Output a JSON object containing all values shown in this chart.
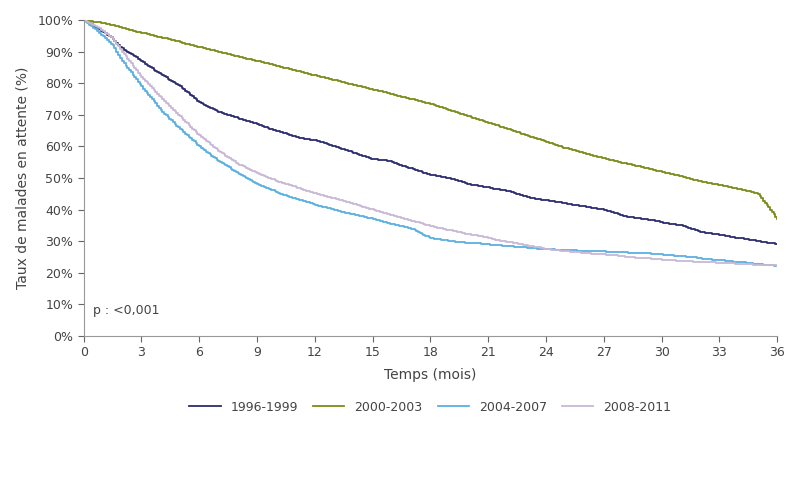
{
  "ylabel": "Taux de malades en attente (%)",
  "xlabel": "Temps (mois)",
  "pvalue_text": "p : <0,001",
  "xlim": [
    0,
    36
  ],
  "ylim": [
    0,
    1.0
  ],
  "xticks": [
    0,
    3,
    6,
    9,
    12,
    15,
    18,
    21,
    24,
    27,
    30,
    33,
    36
  ],
  "yticks": [
    0.0,
    0.1,
    0.2,
    0.3,
    0.4,
    0.5,
    0.6,
    0.7,
    0.8,
    0.9,
    1.0
  ],
  "series": [
    {
      "label": "1996-1999",
      "color": "#2b2d6e",
      "linewidth": 1.3,
      "keypoints": [
        [
          0,
          1.0
        ],
        [
          0.3,
          0.99
        ],
        [
          0.8,
          0.97
        ],
        [
          1.5,
          0.94
        ],
        [
          2,
          0.91
        ],
        [
          3,
          0.87
        ],
        [
          4,
          0.83
        ],
        [
          5,
          0.79
        ],
        [
          6,
          0.74
        ],
        [
          7,
          0.71
        ],
        [
          8,
          0.69
        ],
        [
          9,
          0.67
        ],
        [
          10,
          0.65
        ],
        [
          11,
          0.63
        ],
        [
          12,
          0.62
        ],
        [
          13,
          0.6
        ],
        [
          14,
          0.58
        ],
        [
          15,
          0.56
        ],
        [
          16,
          0.55
        ],
        [
          17,
          0.53
        ],
        [
          18,
          0.51
        ],
        [
          19,
          0.5
        ],
        [
          20,
          0.48
        ],
        [
          21,
          0.47
        ],
        [
          22,
          0.46
        ],
        [
          23,
          0.44
        ],
        [
          24,
          0.43
        ],
        [
          25,
          0.42
        ],
        [
          26,
          0.41
        ],
        [
          27,
          0.4
        ],
        [
          28,
          0.38
        ],
        [
          29,
          0.37
        ],
        [
          30,
          0.36
        ],
        [
          31,
          0.35
        ],
        [
          32,
          0.33
        ],
        [
          33,
          0.32
        ],
        [
          34,
          0.31
        ],
        [
          35,
          0.3
        ],
        [
          36,
          0.29
        ]
      ]
    },
    {
      "label": "2000-2003",
      "color": "#7b8c1a",
      "linewidth": 1.3,
      "keypoints": [
        [
          0,
          1.0
        ],
        [
          0.5,
          0.995
        ],
        [
          1,
          0.99
        ],
        [
          2,
          0.975
        ],
        [
          3,
          0.96
        ],
        [
          4,
          0.945
        ],
        [
          5,
          0.93
        ],
        [
          6,
          0.915
        ],
        [
          7,
          0.9
        ],
        [
          8,
          0.885
        ],
        [
          9,
          0.87
        ],
        [
          10,
          0.855
        ],
        [
          11,
          0.84
        ],
        [
          12,
          0.825
        ],
        [
          13,
          0.81
        ],
        [
          14,
          0.795
        ],
        [
          15,
          0.78
        ],
        [
          16,
          0.765
        ],
        [
          17,
          0.75
        ],
        [
          18,
          0.735
        ],
        [
          19,
          0.715
        ],
        [
          20,
          0.695
        ],
        [
          21,
          0.675
        ],
        [
          22,
          0.655
        ],
        [
          23,
          0.635
        ],
        [
          24,
          0.615
        ],
        [
          25,
          0.595
        ],
        [
          26,
          0.578
        ],
        [
          27,
          0.562
        ],
        [
          28,
          0.548
        ],
        [
          29,
          0.534
        ],
        [
          30,
          0.52
        ],
        [
          31,
          0.505
        ],
        [
          32,
          0.49
        ],
        [
          33,
          0.478
        ],
        [
          34,
          0.465
        ],
        [
          35,
          0.45
        ],
        [
          36,
          0.37
        ]
      ]
    },
    {
      "label": "2004-2007",
      "color": "#5ab0e0",
      "linewidth": 1.3,
      "keypoints": [
        [
          0,
          1.0
        ],
        [
          0.3,
          0.985
        ],
        [
          0.8,
          0.96
        ],
        [
          1.5,
          0.92
        ],
        [
          2,
          0.87
        ],
        [
          3,
          0.79
        ],
        [
          4,
          0.715
        ],
        [
          5,
          0.655
        ],
        [
          6,
          0.6
        ],
        [
          7,
          0.555
        ],
        [
          8,
          0.515
        ],
        [
          9,
          0.48
        ],
        [
          10,
          0.455
        ],
        [
          11,
          0.435
        ],
        [
          12,
          0.415
        ],
        [
          13,
          0.4
        ],
        [
          14,
          0.385
        ],
        [
          15,
          0.37
        ],
        [
          16,
          0.355
        ],
        [
          17,
          0.34
        ],
        [
          18,
          0.31
        ],
        [
          19,
          0.3
        ],
        [
          20,
          0.295
        ],
        [
          21,
          0.29
        ],
        [
          22,
          0.285
        ],
        [
          23,
          0.28
        ],
        [
          24,
          0.275
        ],
        [
          25,
          0.272
        ],
        [
          26,
          0.27
        ],
        [
          27,
          0.268
        ],
        [
          28,
          0.265
        ],
        [
          29,
          0.262
        ],
        [
          30,
          0.258
        ],
        [
          31,
          0.252
        ],
        [
          32,
          0.246
        ],
        [
          33,
          0.24
        ],
        [
          34,
          0.235
        ],
        [
          35,
          0.228
        ],
        [
          36,
          0.222
        ]
      ]
    },
    {
      "label": "2008-2011",
      "color": "#c8b8d5",
      "linewidth": 1.3,
      "keypoints": [
        [
          0,
          1.0
        ],
        [
          0.3,
          0.99
        ],
        [
          0.8,
          0.975
        ],
        [
          1.5,
          0.94
        ],
        [
          2,
          0.9
        ],
        [
          3,
          0.82
        ],
        [
          4,
          0.755
        ],
        [
          5,
          0.695
        ],
        [
          6,
          0.635
        ],
        [
          7,
          0.585
        ],
        [
          8,
          0.545
        ],
        [
          9,
          0.515
        ],
        [
          10,
          0.49
        ],
        [
          11,
          0.47
        ],
        [
          12,
          0.452
        ],
        [
          13,
          0.435
        ],
        [
          14,
          0.418
        ],
        [
          15,
          0.4
        ],
        [
          16,
          0.382
        ],
        [
          17,
          0.365
        ],
        [
          18,
          0.348
        ],
        [
          19,
          0.335
        ],
        [
          20,
          0.322
        ],
        [
          21,
          0.31
        ],
        [
          22,
          0.298
        ],
        [
          23,
          0.287
        ],
        [
          24,
          0.276
        ],
        [
          25,
          0.268
        ],
        [
          26,
          0.262
        ],
        [
          27,
          0.258
        ],
        [
          28,
          0.252
        ],
        [
          29,
          0.247
        ],
        [
          30,
          0.242
        ],
        [
          31,
          0.238
        ],
        [
          32,
          0.234
        ],
        [
          33,
          0.231
        ],
        [
          34,
          0.228
        ],
        [
          35,
          0.225
        ],
        [
          36,
          0.222
        ]
      ]
    }
  ],
  "legend_ncol": 4,
  "fig_width": 8.0,
  "fig_height": 4.88,
  "background_color": "#ffffff",
  "spine_color": "#999999",
  "tick_color": "#666666",
  "label_color": "#444444"
}
